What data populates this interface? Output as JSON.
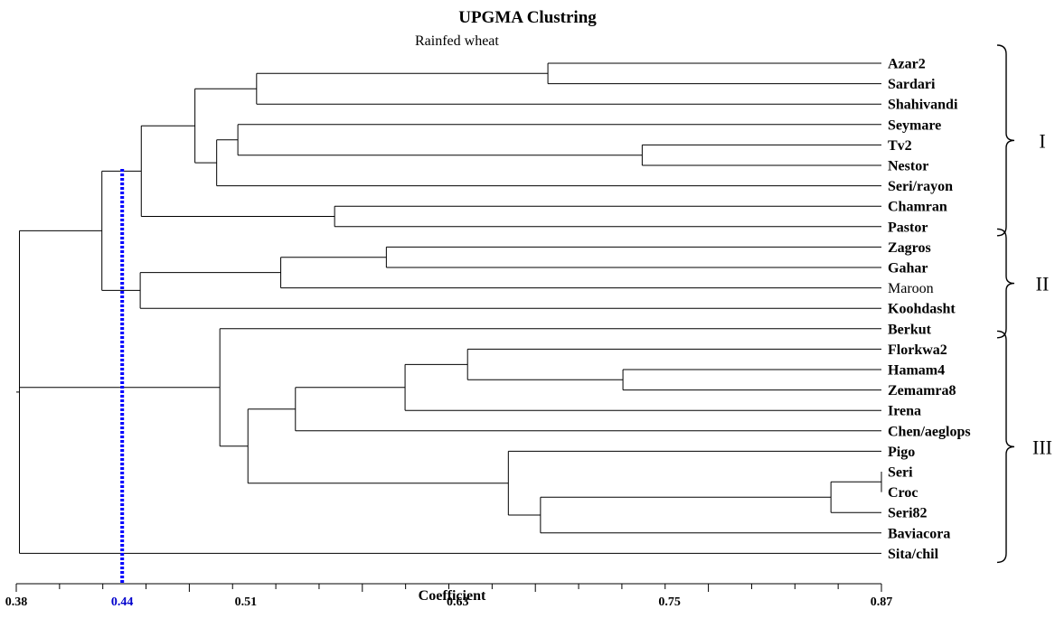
{
  "header": {
    "title": "UPGMA Clustring",
    "subtitle": "Rainfed wheat"
  },
  "axis": {
    "xlabel": "Coefficient",
    "tick_labels": [
      "0.38",
      "0.44",
      "0.51",
      "0.63",
      "0.75",
      "0.87"
    ],
    "highlight_tick": "0.44",
    "xlim": [
      0.38,
      0.87
    ],
    "cutoff": 0.44
  },
  "colors": {
    "line": "#000000",
    "cutoff": "#0000ff",
    "highlight_tick": "#0000cc"
  },
  "leaves": [
    {
      "name": "Azar2",
      "bold": true
    },
    {
      "name": "Sardari",
      "bold": true
    },
    {
      "name": "Shahivandi",
      "bold": true
    },
    {
      "name": "Seymare",
      "bold": true
    },
    {
      "name": "Tv2",
      "bold": true
    },
    {
      "name": "Nestor",
      "bold": true
    },
    {
      "name": "Seri/rayon",
      "bold": true
    },
    {
      "name": "Chamran",
      "bold": true
    },
    {
      "name": "Pastor",
      "bold": true
    },
    {
      "name": "Zagros",
      "bold": true
    },
    {
      "name": "Gahar",
      "bold": true
    },
    {
      "name": "Maroon",
      "bold": false
    },
    {
      "name": "Koohdasht",
      "bold": true
    },
    {
      "name": "Berkut",
      "bold": true
    },
    {
      "name": "Florkwa2",
      "bold": true
    },
    {
      "name": "Hamam4",
      "bold": true
    },
    {
      "name": "Zemamra8",
      "bold": true
    },
    {
      "name": "Irena",
      "bold": true
    },
    {
      "name": "Chen/aeglops",
      "bold": true
    },
    {
      "name": "Pigo",
      "bold": true
    },
    {
      "name": "Seri",
      "bold": true
    },
    {
      "name": "Croc",
      "bold": true
    },
    {
      "name": "Seri82",
      "bold": true
    },
    {
      "name": "Baviacora",
      "bold": true
    },
    {
      "name": "Sita/chil",
      "bold": true
    }
  ],
  "tree": {
    "sim": 0.3818,
    "children": [
      {
        "sim": 0.4285,
        "children": [
          {
            "sim": 0.4508,
            "children": [
              {
                "sim": 0.4812,
                "children": [
                  {
                    "sim": 0.5161,
                    "children": [
                      {
                        "sim": 0.6811,
                        "children": [
                          {
                            "leaf": 0
                          },
                          {
                            "leaf": 1
                          }
                        ]
                      },
                      {
                        "leaf": 2
                      }
                    ]
                  },
                  {
                    "sim": 0.4935,
                    "children": [
                      {
                        "sim": 0.5055,
                        "children": [
                          {
                            "leaf": 3
                          },
                          {
                            "sim": 0.7345,
                            "children": [
                              {
                                "leaf": 4
                              },
                              {
                                "leaf": 5
                              }
                            ]
                          }
                        ]
                      },
                      {
                        "leaf": 6
                      }
                    ]
                  }
                ]
              },
              {
                "sim": 0.5603,
                "children": [
                  {
                    "leaf": 7
                  },
                  {
                    "leaf": 8
                  }
                ]
              }
            ]
          },
          {
            "sim": 0.4502,
            "children": [
              {
                "sim": 0.5298,
                "children": [
                  {
                    "sim": 0.5896,
                    "children": [
                      {
                        "leaf": 9
                      },
                      {
                        "leaf": 10
                      }
                    ]
                  },
                  {
                    "leaf": 11
                  }
                ]
              },
              {
                "leaf": 12
              }
            ]
          }
        ]
      },
      {
        "sim": 0.4953,
        "children": [
          {
            "leaf": 13
          },
          {
            "sim": 0.5112,
            "children": [
              {
                "sim": 0.5381,
                "children": [
                  {
                    "sim": 0.6002,
                    "children": [
                      {
                        "sim": 0.6356,
                        "children": [
                          {
                            "leaf": 14
                          },
                          {
                            "sim": 0.7236,
                            "children": [
                              {
                                "leaf": 15
                              },
                              {
                                "leaf": 16
                              }
                            ]
                          }
                        ]
                      },
                      {
                        "leaf": 17
                      }
                    ]
                  },
                  {
                    "leaf": 18
                  }
                ]
              },
              {
                "sim": 0.6587,
                "children": [
                  {
                    "leaf": 19
                  },
                  {
                    "sim": 0.6769,
                    "children": [
                      {
                        "sim": 0.8414,
                        "children": [
                          {
                            "sim": 0.87,
                            "children": [
                              {
                                "leaf": 20
                              },
                              {
                                "leaf": 21
                              }
                            ]
                          },
                          {
                            "leaf": 22
                          }
                        ]
                      },
                      {
                        "leaf": 23
                      }
                    ]
                  }
                ]
              }
            ]
          }
        ]
      },
      {
        "leaf": 24
      }
    ]
  },
  "groups": [
    {
      "label": "I",
      "from": 0,
      "to": 8
    },
    {
      "label": "II",
      "from": 9,
      "to": 13
    },
    {
      "label": "III",
      "from": 14,
      "to": 24
    }
  ]
}
